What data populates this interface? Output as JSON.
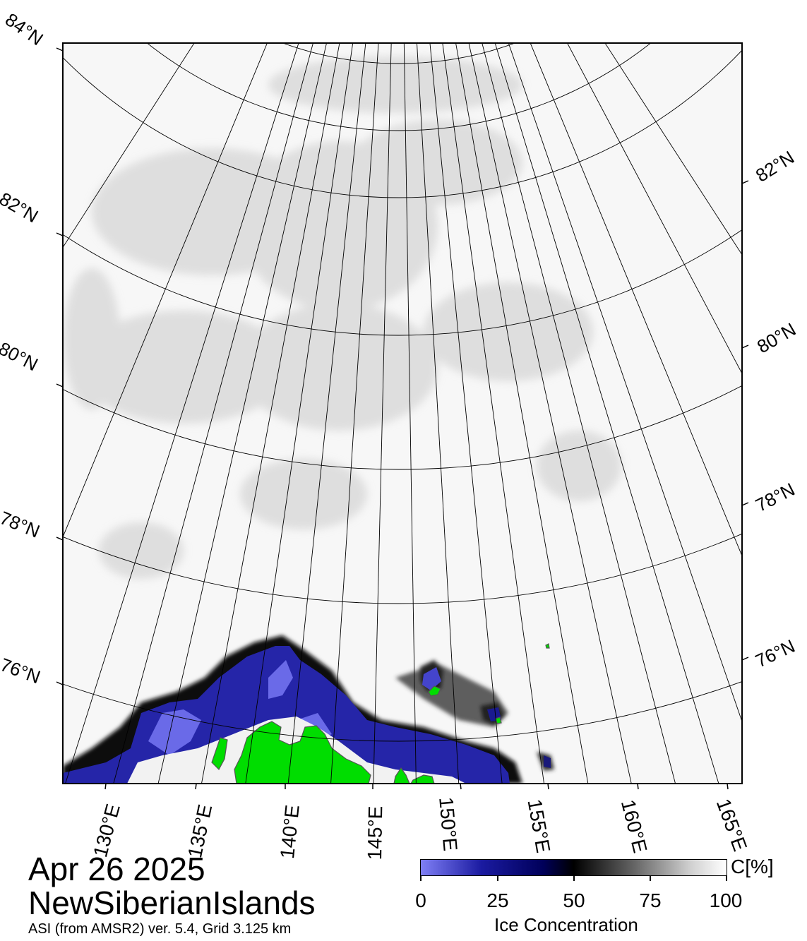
{
  "map": {
    "date": "Apr 26 2025",
    "region": "NewSiberianIslands",
    "info": "ASI (from AMSR2) ver. 5.4,  Grid 3.125 km"
  },
  "lat_labels_left": [
    "84°N",
    "82°N",
    "80°N",
    "78°N",
    "76°N"
  ],
  "lat_labels_right": [
    "82°N",
    "80°N",
    "78°N",
    "76°N"
  ],
  "lon_labels": [
    "130°E",
    "135°E",
    "140°E",
    "145°E",
    "150°E",
    "155°E",
    "160°E",
    "165°E"
  ],
  "colorbar": {
    "ticks": [
      "0",
      "25",
      "50",
      "75",
      "100"
    ],
    "unit": "C[%]",
    "label": "Ice Concentration",
    "colors": {
      "low": "#7f7ff5",
      "mid_low": "#1a1aa0",
      "mid": "#000000",
      "high": "#ffffff"
    }
  },
  "colors": {
    "land": "#00dd00",
    "low_concentration_ice": "#2222aa",
    "ice_shade": "#e8e8e8"
  }
}
